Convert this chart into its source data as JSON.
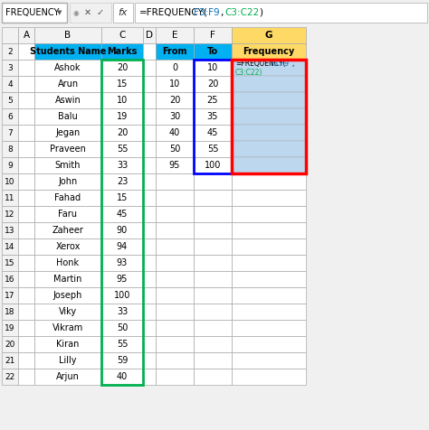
{
  "formula_bar_text": "=FREQUENCY(F3:F9,C3:C22)",
  "name_box": "FREQUENCY",
  "col_labels": [
    "",
    "A",
    "B",
    "C",
    "D",
    "E",
    "F",
    "G"
  ],
  "students": [
    "Ashok",
    "Arun",
    "Aswin",
    "Balu",
    "Jegan",
    "Praveen",
    "Smith",
    "John",
    "Fahad",
    "Faru",
    "Zaheer",
    "Xerox",
    "Honk",
    "Martin",
    "Joseph",
    "Viky",
    "Vikram",
    "Kiran",
    "Lilly",
    "Arjun"
  ],
  "marks": [
    20,
    15,
    10,
    19,
    20,
    55,
    33,
    23,
    15,
    45,
    90,
    94,
    93,
    95,
    100,
    33,
    50,
    55,
    59,
    40
  ],
  "from_vals": [
    0,
    10,
    20,
    30,
    40,
    50,
    95
  ],
  "to_vals": [
    10,
    20,
    25,
    35,
    45,
    55,
    100
  ],
  "header_bg": "#00B0F0",
  "cell_bg_blue": "#BDD7EE",
  "red_border_color": "#FF0000",
  "blue_border_color": "#0000FF",
  "green_border_color": "#00B050",
  "row_header_bg": "#F2F2F2",
  "col_g_header_bg": "#FFD966",
  "toolbar_bg": "#F0F0F0"
}
